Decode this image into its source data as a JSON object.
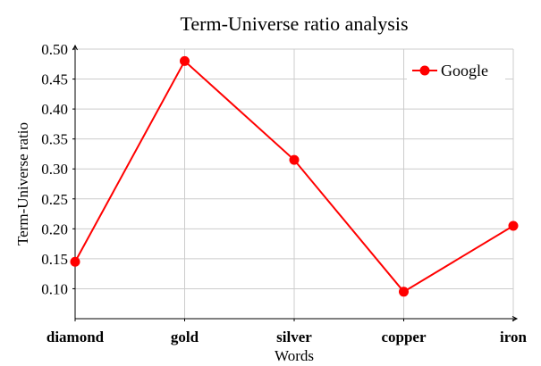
{
  "chart_data": {
    "type": "line",
    "title": "Term-Universe ratio analysis",
    "xlabel": "Words",
    "ylabel": "Term-Universe ratio",
    "categories": [
      "diamond",
      "gold",
      "silver",
      "copper",
      "iron"
    ],
    "series": [
      {
        "name": "Google",
        "values": [
          0.145,
          0.48,
          0.315,
          0.095,
          0.205
        ],
        "color": "#ff0000",
        "marker": "circle"
      }
    ],
    "ylim": [
      0.05,
      0.5
    ],
    "yticks": [
      0.1,
      0.15,
      0.2,
      0.25,
      0.3,
      0.35,
      0.4,
      0.45,
      0.5
    ],
    "ytick_labels": [
      "0.10",
      "0.15",
      "0.20",
      "0.25",
      "0.30",
      "0.35",
      "0.40",
      "0.45",
      "0.50"
    ],
    "grid": true,
    "legend_position": "top-right"
  }
}
